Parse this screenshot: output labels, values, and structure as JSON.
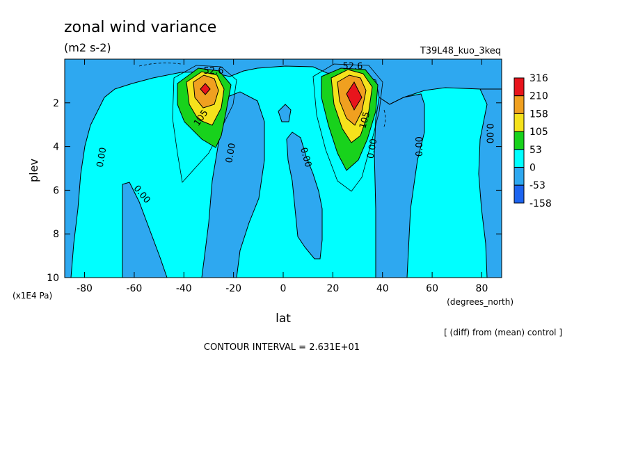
{
  "chart_data": {
    "type": "contour",
    "title": "zonal wind variance",
    "units": "(m2 s-2)",
    "experiment": "T39L48_kuo_3keq",
    "xlabel": "lat",
    "xunits": "(degrees_north)",
    "ylabel": "plev",
    "yunits": "(x1E4 Pa)",
    "xlim": [
      -88,
      88
    ],
    "ylim": [
      10,
      0
    ],
    "x_ticks": [
      "-80",
      "-60",
      "-40",
      "-20",
      "0",
      "20",
      "40",
      "60",
      "80"
    ],
    "x_tick_values": [
      -80,
      -60,
      -40,
      -20,
      0,
      20,
      40,
      60,
      80
    ],
    "y_ticks": [
      "2",
      "4",
      "6",
      "8",
      "10"
    ],
    "y_tick_values": [
      2,
      4,
      6,
      8,
      10
    ],
    "levels": [
      {
        "label": "316",
        "color": "#e8141c"
      },
      {
        "label": "210",
        "color": "#f0a020"
      },
      {
        "label": "158",
        "color": "#f5e21c"
      },
      {
        "label": "105",
        "color": "#18d21c"
      },
      {
        "label": "53",
        "color": "#00ffff"
      },
      {
        "label": "0",
        "color": "#2ea8f0"
      },
      {
        "label": "-53",
        "color": "#1c64f0"
      },
      {
        "label": "-158",
        "color": ""
      }
    ],
    "contour_labels": [
      {
        "text": "52.6",
        "lat": -28,
        "plev": 0.55,
        "angle": 0
      },
      {
        "text": "105",
        "lat": -33,
        "plev": 2.7,
        "angle": -55
      },
      {
        "text": "52.6",
        "lat": 28,
        "plev": 0.35,
        "angle": 0
      },
      {
        "text": "105",
        "lat": 33,
        "plev": 2.8,
        "angle": -75
      },
      {
        "text": "0.00",
        "lat": -73,
        "plev": 4.5,
        "angle": -80
      },
      {
        "text": "0.00",
        "lat": -57,
        "plev": 6.2,
        "angle": 50
      },
      {
        "text": "0.00",
        "lat": -21,
        "plev": 4.3,
        "angle": -80
      },
      {
        "text": "0.00",
        "lat": 9,
        "plev": 4.5,
        "angle": 75
      },
      {
        "text": "0.00",
        "lat": 36,
        "plev": 4.1,
        "angle": -80
      },
      {
        "text": "0.00",
        "lat": 55,
        "plev": 4.0,
        "angle": -90
      },
      {
        "text": "0.00",
        "lat": 83,
        "plev": 3.4,
        "angle": 90
      }
    ],
    "footer_diff": "[ (diff) from (mean) control ]",
    "contour_interval": "CONTOUR INTERVAL = 2.631E+01"
  }
}
